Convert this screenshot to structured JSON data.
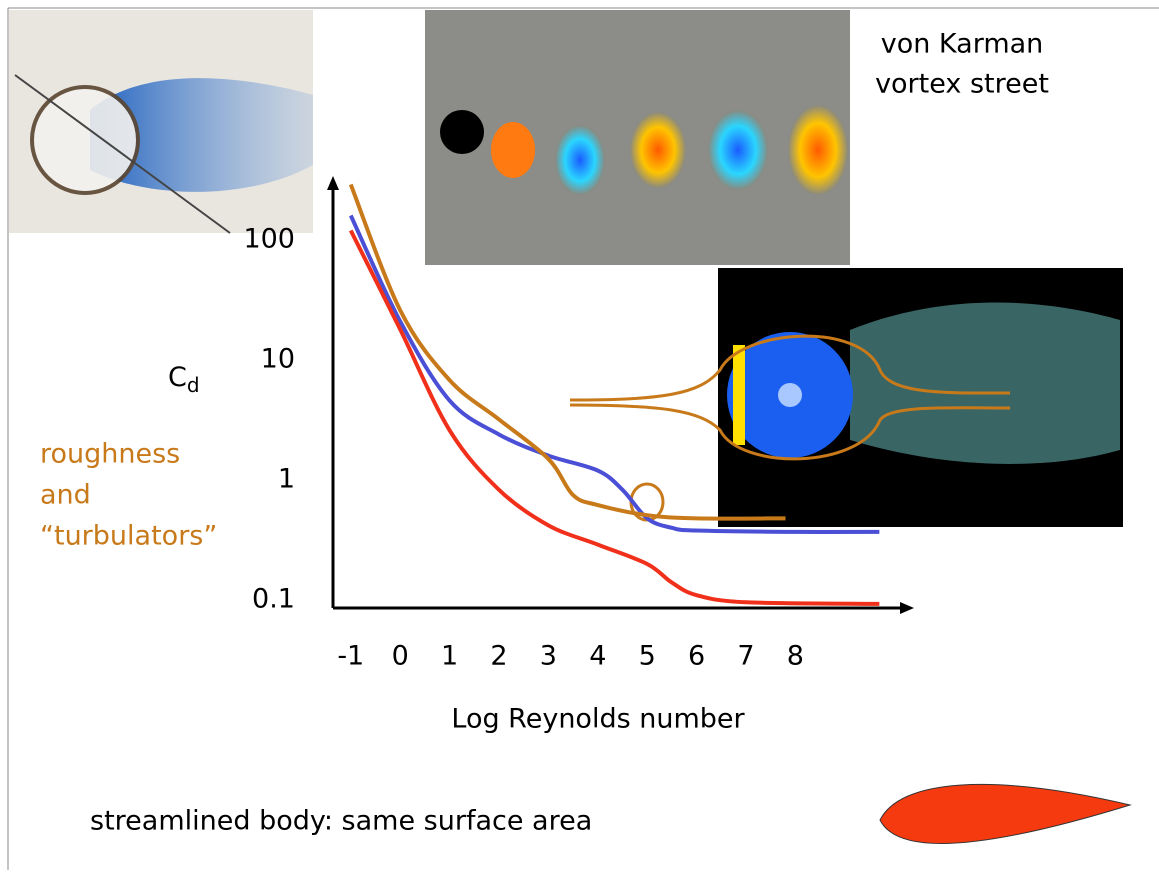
{
  "chart_data": {
    "type": "line",
    "xlabel": "Log Reynolds number",
    "ylabel": {
      "main": "C",
      "sub": "d"
    },
    "annotations": {
      "vortex": [
        "von Karman",
        "vortex street"
      ],
      "roughness": [
        "roughness",
        "and",
        "“turbulators”"
      ],
      "streamlined": "streamlined body: same surface area"
    },
    "xlim": [
      -1.36,
      10.32
    ],
    "xticks": [
      -1,
      0,
      1,
      2,
      3,
      4,
      5,
      6,
      7,
      8
    ],
    "ylim": [
      0.086,
      316
    ],
    "yticks": [
      100,
      10,
      1,
      0.1
    ],
    "log_y": true,
    "series": [
      {
        "color": "#4a4fd6",
        "x": [
          -1,
          0,
          1,
          2,
          3,
          4,
          4.5,
          5,
          5.5,
          6,
          8,
          9.7
        ],
        "values": [
          160,
          21,
          4.6,
          2.4,
          1.6,
          1.2,
          0.83,
          0.48,
          0.4,
          0.38,
          0.37,
          0.37
        ]
      },
      {
        "color": "#f0301a",
        "x": [
          -1,
          0,
          1,
          2,
          3,
          4,
          5,
          5.5,
          6,
          7,
          9.7
        ],
        "values": [
          120,
          18,
          2.6,
          0.83,
          0.42,
          0.29,
          0.2,
          0.14,
          0.11,
          0.096,
          0.093
        ]
      },
      {
        "color": "#c87a1a",
        "x": [
          -1,
          0,
          1,
          2,
          3,
          3.5,
          4,
          5,
          6,
          7.8
        ],
        "values": [
          290,
          26,
          6.8,
          3.2,
          1.5,
          0.75,
          0.62,
          0.51,
          0.48,
          0.48
        ]
      }
    ]
  }
}
